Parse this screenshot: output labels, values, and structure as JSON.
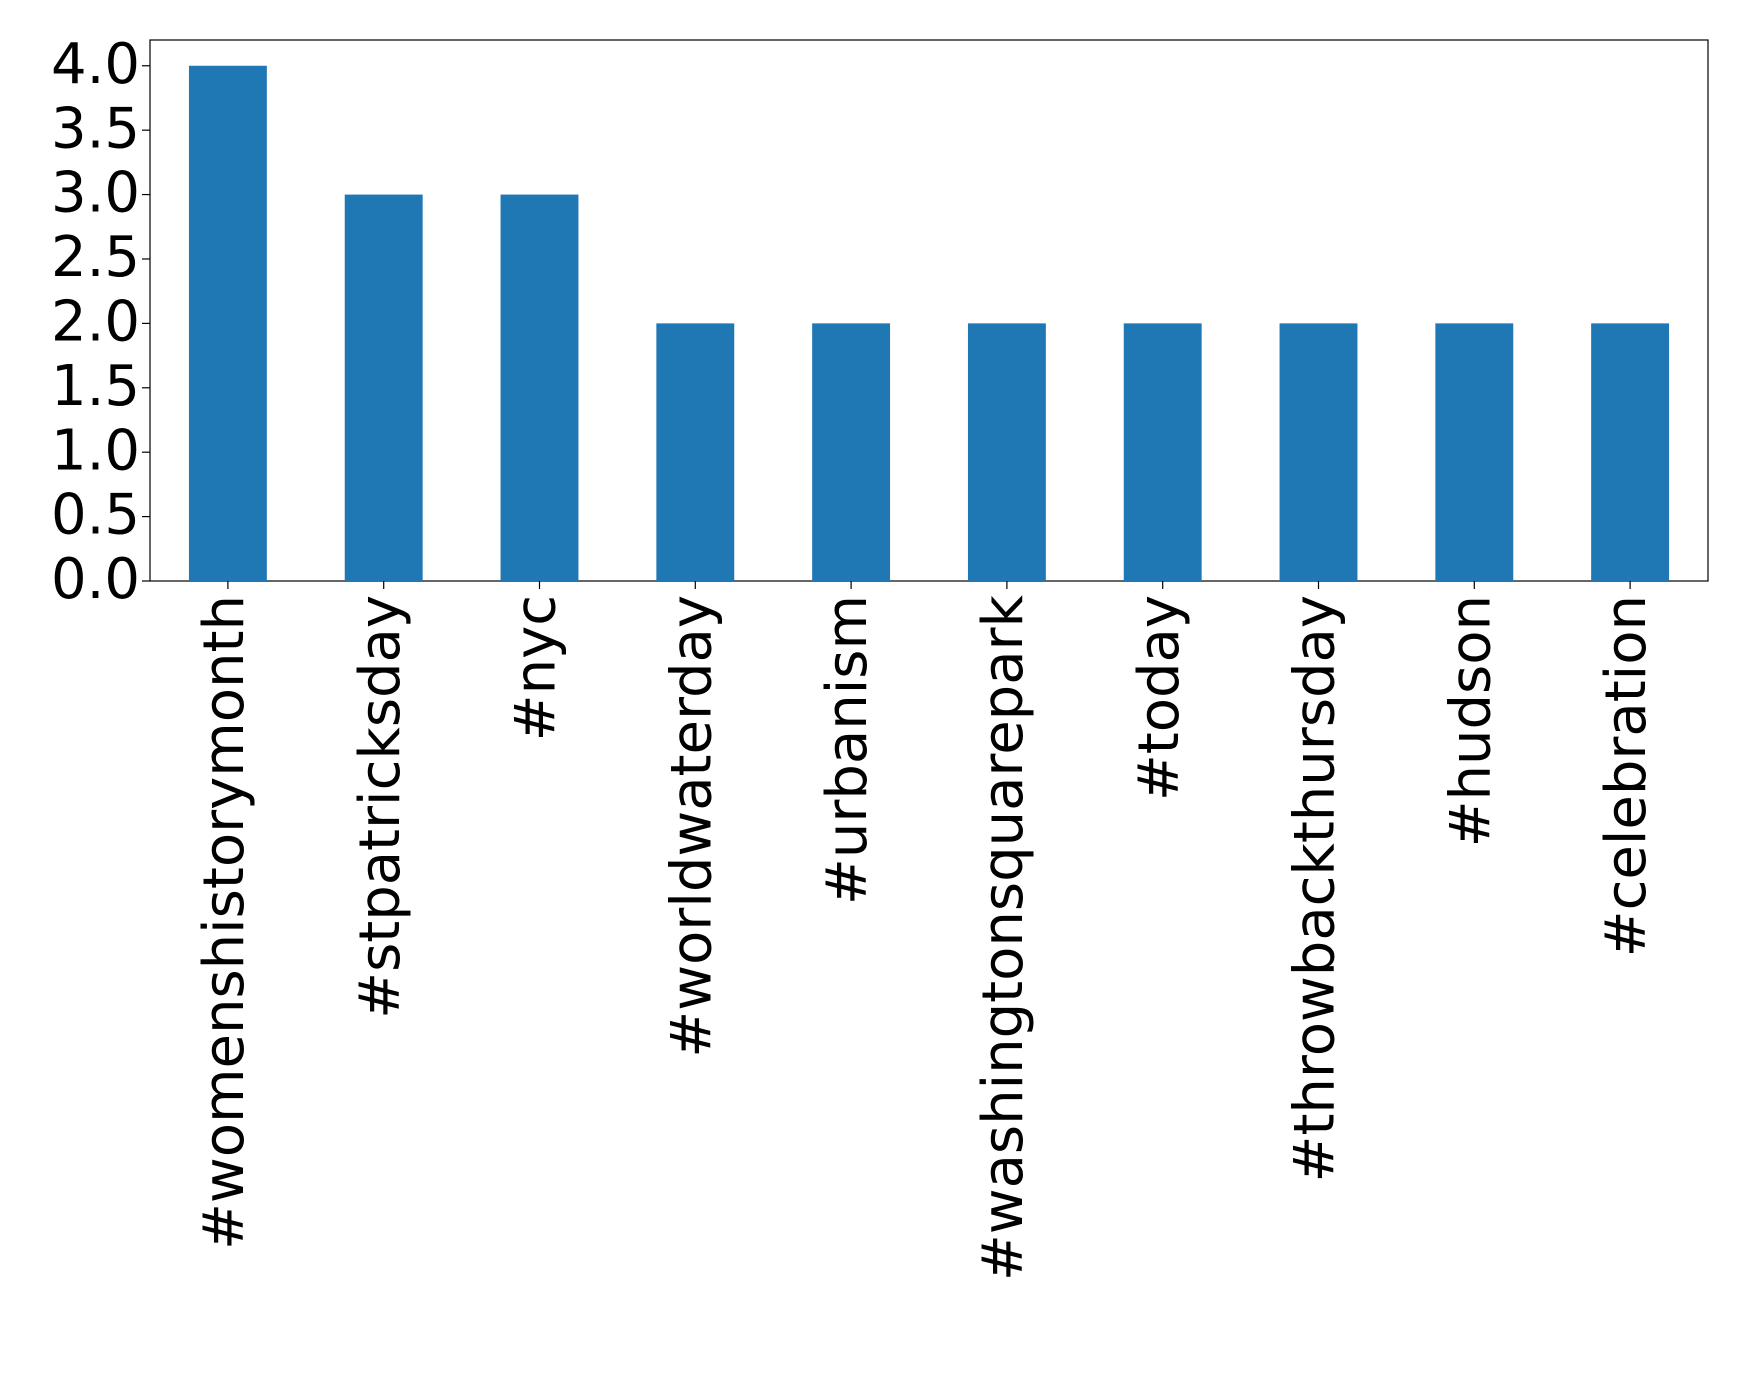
{
  "chart_data": {
    "type": "bar",
    "categories": [
      "#womenshistorymonth",
      "#stpatricksday",
      "#nyc",
      "#worldwaterday",
      "#urbanism",
      "#washingtonsquarepark",
      "#today",
      "#throwbackthursday",
      "#hudson",
      "#celebration"
    ],
    "values": [
      4,
      3,
      3,
      2,
      2,
      2,
      2,
      2,
      2,
      2
    ],
    "color": "#1f77b4",
    "ylim": [
      0,
      4.2
    ],
    "yticks": [
      {
        "value": 0,
        "label": "0.0"
      },
      {
        "value": 0.5,
        "label": "0.5"
      },
      {
        "value": 1,
        "label": "1.0"
      },
      {
        "value": 1.5,
        "label": "1.5"
      },
      {
        "value": 2,
        "label": "2.0"
      },
      {
        "value": 2.5,
        "label": "2.5"
      },
      {
        "value": 3,
        "label": "3.0"
      },
      {
        "value": 3.5,
        "label": "3.5"
      },
      {
        "value": 4,
        "label": "4.0"
      }
    ],
    "grid": false
  }
}
